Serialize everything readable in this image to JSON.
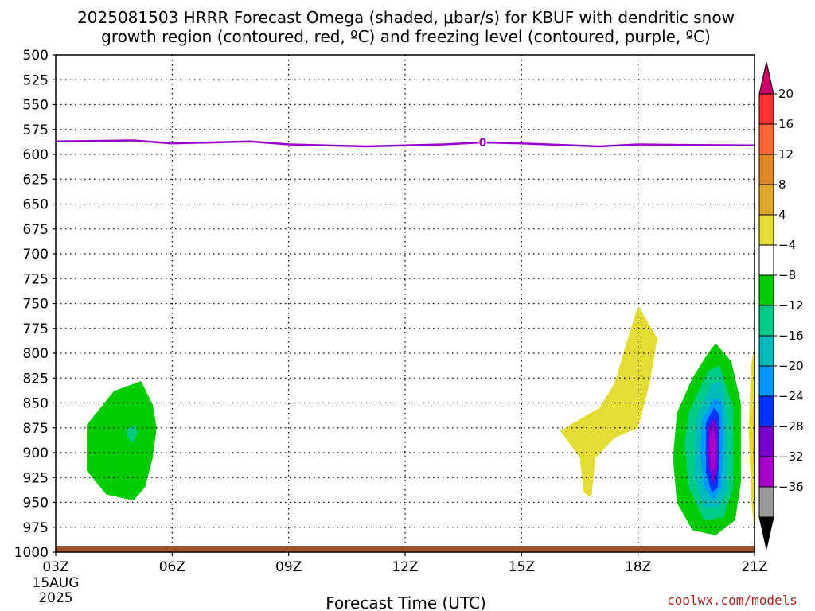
{
  "title": {
    "line1": "2025081503 HRRR Forecast Omega (shaded, μbar/s) for KBUF with dendritic snow",
    "line2": "growth region (contoured, red, ºC) and freezing level (contoured, purple, ºC)"
  },
  "credit": "coolwx.com/models",
  "chart_data": {
    "type": "time-height contour",
    "xlabel": "Forecast Time (UTC)",
    "x_ticks": [
      "03Z",
      "06Z",
      "09Z",
      "12Z",
      "15Z",
      "18Z",
      "21Z"
    ],
    "x_hours": [
      3,
      6,
      9,
      12,
      15,
      18,
      21
    ],
    "x_range": [
      3,
      21
    ],
    "x_date_label": [
      "15AUG",
      "2025"
    ],
    "y_ticks": [
      500,
      525,
      550,
      575,
      600,
      625,
      650,
      675,
      700,
      725,
      750,
      775,
      800,
      825,
      850,
      875,
      900,
      925,
      950,
      975,
      1000
    ],
    "y_range_hPa": [
      500,
      1000
    ],
    "y_axis_reversed": true,
    "grid": true,
    "freezing_level": {
      "color": "#9900cc",
      "label": "0",
      "label_hour": 14,
      "points": [
        [
          3,
          587
        ],
        [
          5,
          586
        ],
        [
          6,
          589
        ],
        [
          8,
          587
        ],
        [
          9,
          590
        ],
        [
          11,
          592
        ],
        [
          13,
          590
        ],
        [
          14,
          588
        ],
        [
          15,
          589
        ],
        [
          17,
          592
        ],
        [
          18,
          590
        ],
        [
          19,
          590.5
        ],
        [
          21,
          591
        ]
      ]
    },
    "omega_shading": [
      {
        "level": "-8 to -4",
        "color": "#00cc00",
        "points": [
          [
            3.8,
            872
          ],
          [
            4.5,
            838
          ],
          [
            5.2,
            828
          ],
          [
            5.5,
            852
          ],
          [
            5.6,
            875
          ],
          [
            5.5,
            905
          ],
          [
            5.3,
            935
          ],
          [
            5.0,
            948
          ],
          [
            4.3,
            942
          ],
          [
            3.8,
            918
          ],
          [
            3.8,
            895
          ]
        ]
      },
      {
        "level": "-12 to -8",
        "color": "#00cc88",
        "points": [
          [
            4.85,
            876
          ],
          [
            5.05,
            872
          ],
          [
            5.1,
            880
          ],
          [
            5.0,
            890
          ],
          [
            4.85,
            885
          ]
        ]
      },
      {
        "level": "4 to 8",
        "color": "#e3dd33",
        "points": [
          [
            16.0,
            878
          ],
          [
            17.0,
            855
          ],
          [
            17.4,
            830
          ],
          [
            17.7,
            790
          ],
          [
            18.0,
            752
          ],
          [
            18.5,
            785
          ],
          [
            18.3,
            830
          ],
          [
            18.0,
            875
          ],
          [
            17.4,
            885
          ],
          [
            16.9,
            905
          ],
          [
            16.8,
            945
          ],
          [
            16.6,
            940
          ],
          [
            16.5,
            905
          ]
        ]
      },
      {
        "level": "-8 to -4",
        "color": "#00cc00",
        "points": [
          [
            19.0,
            860
          ],
          [
            19.4,
            825
          ],
          [
            19.8,
            800
          ],
          [
            20.0,
            790
          ],
          [
            20.4,
            808
          ],
          [
            20.65,
            850
          ],
          [
            20.65,
            930
          ],
          [
            20.5,
            968
          ],
          [
            20.0,
            983
          ],
          [
            19.4,
            978
          ],
          [
            19.0,
            950
          ],
          [
            18.9,
            905
          ]
        ]
      },
      {
        "level": "-12 to -8",
        "color": "#00cc88",
        "points": [
          [
            19.3,
            860
          ],
          [
            19.8,
            818
          ],
          [
            20.1,
            812
          ],
          [
            20.45,
            855
          ],
          [
            20.45,
            935
          ],
          [
            20.2,
            965
          ],
          [
            19.7,
            968
          ],
          [
            19.3,
            935
          ],
          [
            19.2,
            890
          ]
        ]
      },
      {
        "level": "-16 to -12",
        "color": "#00bbbb",
        "points": [
          [
            19.5,
            865
          ],
          [
            19.9,
            830
          ],
          [
            20.15,
            828
          ],
          [
            20.3,
            870
          ],
          [
            20.3,
            935
          ],
          [
            20.1,
            955
          ],
          [
            19.7,
            955
          ],
          [
            19.45,
            925
          ]
        ]
      },
      {
        "level": "-20 to -16",
        "color": "#0099ff",
        "points": [
          [
            19.65,
            868
          ],
          [
            19.95,
            845
          ],
          [
            20.15,
            848
          ],
          [
            20.2,
            885
          ],
          [
            20.15,
            935
          ],
          [
            19.95,
            948
          ],
          [
            19.7,
            935
          ],
          [
            19.6,
            900
          ]
        ]
      },
      {
        "level": "-24 to -20",
        "color": "#0033ff",
        "points": [
          [
            19.75,
            870
          ],
          [
            19.95,
            855
          ],
          [
            20.1,
            862
          ],
          [
            20.1,
            905
          ],
          [
            20.05,
            935
          ],
          [
            19.9,
            940
          ],
          [
            19.75,
            920
          ]
        ]
      },
      {
        "level": "-28 to -24",
        "color": "#7700cc",
        "points": [
          [
            19.8,
            875
          ],
          [
            19.95,
            865
          ],
          [
            20.05,
            875
          ],
          [
            20.05,
            915
          ],
          [
            19.95,
            932
          ],
          [
            19.82,
            915
          ]
        ]
      },
      {
        "level": "-32 to -28",
        "color": "#aa00cc",
        "points": [
          [
            19.85,
            882
          ],
          [
            19.95,
            878
          ],
          [
            20.0,
            890
          ],
          [
            19.98,
            915
          ],
          [
            19.88,
            920
          ],
          [
            19.85,
            900
          ]
        ]
      },
      {
        "level": "4 to 8",
        "color": "#e3dd33",
        "points": [
          [
            21.0,
            792
          ],
          [
            21.0,
            978
          ],
          [
            20.92,
            950
          ],
          [
            20.85,
            880
          ],
          [
            20.9,
            815
          ]
        ]
      },
      {
        "level": "8 to 12",
        "color": "#e0a62c",
        "points": [
          [
            21.0,
            825
          ],
          [
            21.0,
            935
          ],
          [
            20.96,
            900
          ],
          [
            20.97,
            860
          ]
        ]
      }
    ],
    "colorbar": {
      "labels": [
        "20",
        "16",
        "12",
        "8",
        "4",
        "−4",
        "−8",
        "−12",
        "−16",
        "−20",
        "−24",
        "−28",
        "−32",
        "−36"
      ],
      "colors": [
        "#ff3333",
        "#ff6633",
        "#e08826",
        "#e0a62c",
        "#e3dd33",
        "#ffffff",
        "#00cc00",
        "#00cc88",
        "#00bbbb",
        "#0099ff",
        "#0033ff",
        "#7700cc",
        "#aa00cc",
        "#999999"
      ],
      "top_arrow_color": "#cc0066",
      "bottom_arrow_color": "#000000"
    },
    "ground_color": "#a0522d"
  }
}
